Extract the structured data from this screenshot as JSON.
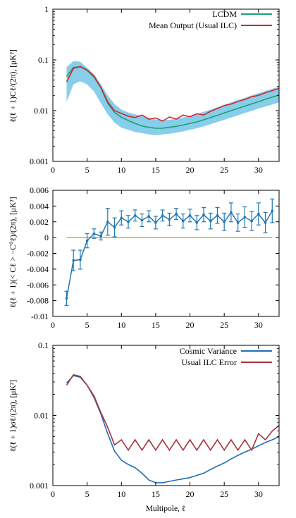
{
  "chart_data": [
    {
      "type": "line",
      "panel": "top",
      "xlim": [
        0,
        33
      ],
      "ylim": [
        0.001,
        1
      ],
      "yscale": "log",
      "x_ticks": [
        0,
        5,
        10,
        15,
        20,
        25,
        30
      ],
      "y_ticks": [
        0.001,
        0.01,
        0.1,
        1
      ],
      "y_tick_labels": [
        "0.001",
        "0.01",
        "0.1",
        "1"
      ],
      "ylabel": "ℓ(ℓ + 1)Cℓ/(2π), [μK²]",
      "xlabel": "",
      "legend_position": "top-right",
      "x": [
        2,
        3,
        4,
        5,
        6,
        7,
        8,
        9,
        10,
        11,
        12,
        13,
        14,
        15,
        16,
        17,
        18,
        19,
        20,
        21,
        22,
        23,
        24,
        25,
        26,
        27,
        28,
        29,
        30,
        31,
        32,
        33
      ],
      "band": {
        "color": "#87ceeb",
        "lower": [
          0.015,
          0.033,
          0.038,
          0.033,
          0.024,
          0.014,
          0.0085,
          0.0058,
          0.0046,
          0.0042,
          0.0038,
          0.0036,
          0.0034,
          0.0033,
          0.0034,
          0.0035,
          0.0037,
          0.0039,
          0.0042,
          0.0045,
          0.0049,
          0.0054,
          0.006,
          0.0066,
          0.0073,
          0.0081,
          0.009,
          0.0099,
          0.011,
          0.012,
          0.0132,
          0.0145
        ],
        "upper": [
          0.072,
          0.095,
          0.092,
          0.07,
          0.052,
          0.033,
          0.02,
          0.0135,
          0.0105,
          0.0092,
          0.0085,
          0.0078,
          0.0072,
          0.0067,
          0.0065,
          0.0066,
          0.0069,
          0.0073,
          0.0079,
          0.0086,
          0.0095,
          0.0105,
          0.0117,
          0.013,
          0.0145,
          0.0162,
          0.018,
          0.02,
          0.022,
          0.0245,
          0.027,
          0.0297
        ]
      },
      "series": [
        {
          "name": "LCDM",
          "color": "#1f9e6f",
          "values": [
            0.047,
            0.071,
            0.073,
            0.062,
            0.046,
            0.028,
            0.014,
            0.0092,
            0.0074,
            0.0064,
            0.0056,
            0.005,
            0.0047,
            0.0045,
            0.0045,
            0.0047,
            0.0049,
            0.0052,
            0.0056,
            0.006,
            0.0066,
            0.0073,
            0.0081,
            0.009,
            0.01,
            0.0111,
            0.0123,
            0.0136,
            0.015,
            0.0167,
            0.0185,
            0.0203
          ]
        },
        {
          "name": "Mean Output (Usual ILC)",
          "color": "#d62728",
          "values": [
            0.037,
            0.068,
            0.074,
            0.064,
            0.048,
            0.029,
            0.015,
            0.01,
            0.0088,
            0.0078,
            0.0073,
            0.0082,
            0.0068,
            0.0072,
            0.0062,
            0.0075,
            0.0068,
            0.0082,
            0.0076,
            0.0087,
            0.0082,
            0.0097,
            0.011,
            0.0126,
            0.0135,
            0.0152,
            0.0165,
            0.0188,
            0.02,
            0.0225,
            0.0248,
            0.0275
          ]
        }
      ]
    },
    {
      "type": "errorbar",
      "panel": "middle",
      "xlim": [
        0,
        33
      ],
      "ylim": [
        -0.01,
        0.006
      ],
      "x_ticks": [
        0,
        5,
        10,
        15,
        20,
        25,
        30
      ],
      "y_ticks": [
        -0.01,
        -0.008,
        -0.006,
        -0.004,
        -0.002,
        0,
        0.002,
        0.004,
        0.006
      ],
      "y_tick_labels": [
        "-0.01",
        "-0.008",
        "-0.006",
        "-0.004",
        "-0.002",
        "0",
        "0.002",
        "0.004",
        "0.006"
      ],
      "ylabel": "ℓ(ℓ + 1)(< Cℓ > −C⁰ℓ)/(2π), [μK²]",
      "xlabel": "",
      "zero_line_color": "#e8a31a",
      "series": [
        {
          "color": "#1f77b4",
          "x": [
            2,
            3,
            4,
            5,
            6,
            7,
            8,
            9,
            10,
            11,
            12,
            13,
            14,
            15,
            16,
            17,
            18,
            19,
            20,
            21,
            22,
            23,
            24,
            25,
            26,
            27,
            28,
            29,
            30,
            31,
            32
          ],
          "values": [
            -0.0077,
            -0.0029,
            -0.0028,
            -0.0004,
            0.0005,
            0.0002,
            0.002,
            0.0013,
            0.0025,
            0.002,
            0.0028,
            0.0022,
            0.0027,
            0.0019,
            0.0028,
            0.0023,
            0.003,
            0.0021,
            0.0028,
            0.0019,
            0.0029,
            0.0021,
            0.0028,
            0.002,
            0.0032,
            0.0019,
            0.0026,
            0.0021,
            0.003,
            0.0019,
            0.0034
          ],
          "errors": [
            0.0009,
            0.0013,
            0.0012,
            0.0009,
            0.0006,
            0.0005,
            0.0017,
            0.0012,
            0.0009,
            0.0008,
            0.0007,
            0.0008,
            0.0007,
            0.0008,
            0.0007,
            0.0008,
            0.0007,
            0.0009,
            0.0008,
            0.0009,
            0.0009,
            0.001,
            0.001,
            0.0011,
            0.0012,
            0.0011,
            0.0013,
            0.0012,
            0.0014,
            0.0013,
            0.0015
          ]
        }
      ]
    },
    {
      "type": "line",
      "panel": "bottom",
      "xlim": [
        0,
        33
      ],
      "ylim": [
        0.001,
        0.1
      ],
      "yscale": "log",
      "x_ticks": [
        0,
        5,
        10,
        15,
        20,
        25,
        30
      ],
      "y_ticks": [
        0.001,
        0.01,
        0.1
      ],
      "y_tick_labels": [
        "0.001",
        "0.01",
        "0.1"
      ],
      "ylabel": "ℓ(ℓ + 1)σℓ/(2π), [μK²]",
      "xlabel": "Multipole, ℓ",
      "legend_position": "top-right",
      "x": [
        2,
        3,
        4,
        5,
        6,
        7,
        8,
        9,
        10,
        11,
        12,
        13,
        14,
        15,
        16,
        17,
        18,
        19,
        20,
        21,
        22,
        23,
        24,
        25,
        26,
        27,
        28,
        29,
        30,
        31,
        32,
        33
      ],
      "series": [
        {
          "name": "Cosmic Variance",
          "color": "#1f6fb4",
          "values": [
            0.029,
            0.037,
            0.035,
            0.027,
            0.018,
            0.0105,
            0.0055,
            0.0031,
            0.0023,
            0.002,
            0.0018,
            0.0015,
            0.0012,
            0.0011,
            0.0011,
            0.00115,
            0.0012,
            0.00125,
            0.0013,
            0.0014,
            0.0015,
            0.0017,
            0.0019,
            0.0021,
            0.0024,
            0.0027,
            0.003,
            0.0033,
            0.0037,
            0.0041,
            0.0045,
            0.005
          ]
        },
        {
          "name": "Usual ILC Error",
          "color": "#a8323a",
          "values": [
            0.027,
            0.038,
            0.036,
            0.027,
            0.019,
            0.011,
            0.0068,
            0.0038,
            0.0045,
            0.0032,
            0.0045,
            0.0032,
            0.0045,
            0.0032,
            0.0045,
            0.0032,
            0.0045,
            0.0032,
            0.0045,
            0.0032,
            0.0045,
            0.0032,
            0.0045,
            0.0032,
            0.0045,
            0.0032,
            0.0045,
            0.0032,
            0.0055,
            0.0045,
            0.006,
            0.0072
          ]
        }
      ]
    }
  ]
}
